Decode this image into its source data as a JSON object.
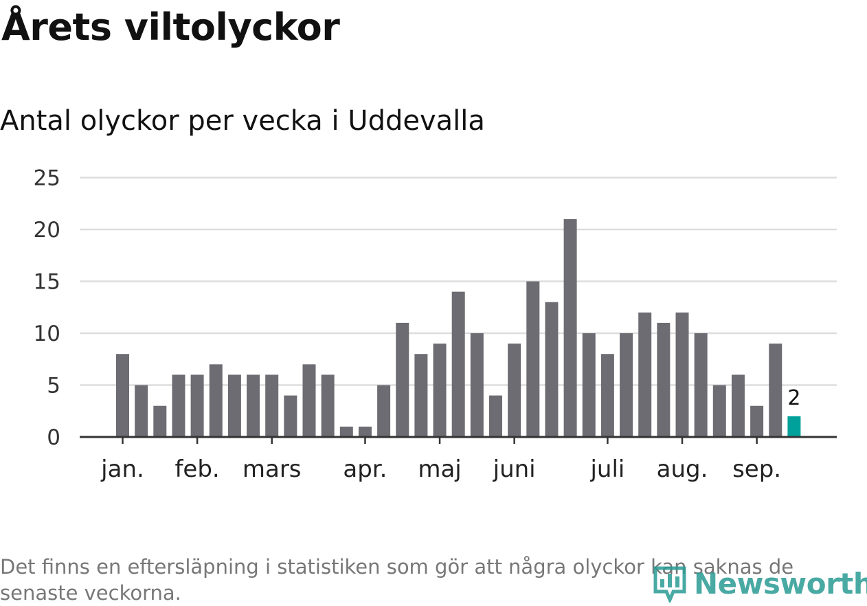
{
  "title": "Årets viltolyckor",
  "subtitle": "Antal olyckor per vecka i Uddevalla",
  "footnote": "Det finns en eftersläpning i statistiken som gör att några olyckor kan saknas de senaste veckorna.",
  "logo_text": "Newsworthy",
  "colors": {
    "bar": "#6d6c72",
    "highlight": "#00a19a",
    "grid": "#dddddd",
    "axis": "#333333",
    "logo": "#2a9b94"
  },
  "chart_data": {
    "type": "bar",
    "title": "Antal olyckor per vecka i Uddevalla",
    "xlabel": "",
    "ylabel": "",
    "ylim": [
      0,
      25
    ],
    "yticks": [
      0,
      5,
      10,
      15,
      20,
      25
    ],
    "values": [
      8,
      5,
      3,
      6,
      6,
      7,
      6,
      6,
      6,
      4,
      7,
      6,
      1,
      1,
      5,
      11,
      8,
      9,
      14,
      10,
      4,
      9,
      15,
      13,
      21,
      10,
      8,
      10,
      12,
      11,
      12,
      10,
      5,
      6,
      3,
      9,
      2
    ],
    "month_labels": [
      {
        "label": "jan.",
        "week": 1
      },
      {
        "label": "feb.",
        "week": 5
      },
      {
        "label": "mars",
        "week": 9
      },
      {
        "label": "apr.",
        "week": 14
      },
      {
        "label": "maj",
        "week": 18
      },
      {
        "label": "juni",
        "week": 22
      },
      {
        "label": "juli",
        "week": 27
      },
      {
        "label": "aug.",
        "week": 31
      },
      {
        "label": "sep.",
        "week": 35
      }
    ],
    "highlight_last": true,
    "data_labels": [
      {
        "week": 37,
        "text": "2"
      }
    ],
    "grid": true,
    "legend": "none"
  }
}
